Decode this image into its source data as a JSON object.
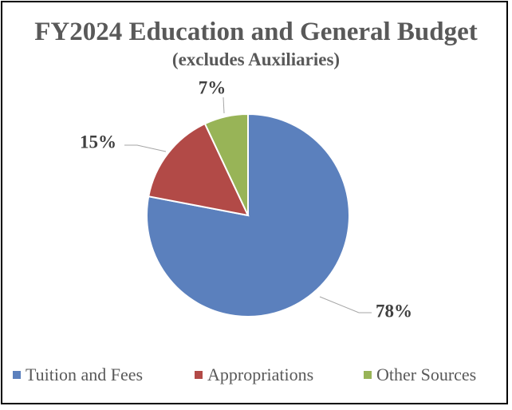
{
  "chart_data": {
    "type": "pie",
    "title": "FY2024 Education and General Budget",
    "subtitle": "(excludes Auxiliaries)",
    "categories": [
      "Tuition and Fees",
      "Appropriations",
      "Other Sources"
    ],
    "values": [
      78,
      15,
      7
    ],
    "data_labels": [
      "78%",
      "15%",
      "7%"
    ],
    "colors": [
      "#5B80BD",
      "#B24A47",
      "#98B457"
    ],
    "legend_position": "bottom",
    "start_angle": "12 o'clock",
    "direction": "clockwise"
  }
}
